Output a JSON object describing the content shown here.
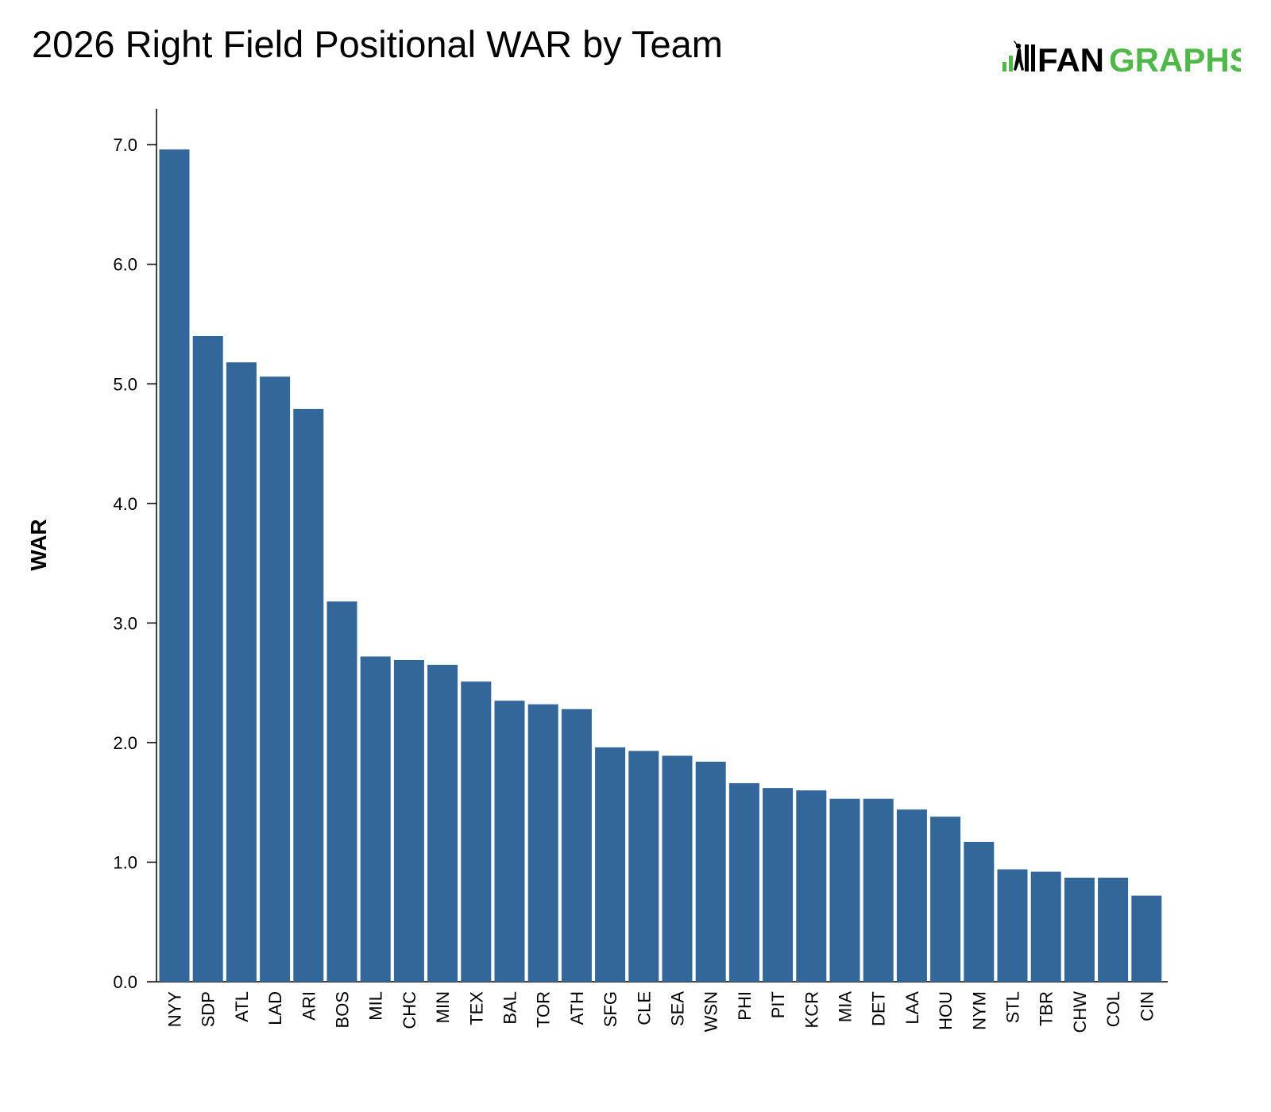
{
  "title": "2026 Right Field Positional WAR by Team",
  "logo": {
    "text_dark": "FAN",
    "text_green": "GRAPHS",
    "icon": "batter-bars-icon",
    "color_dark": "#000000",
    "color_green": "#4fb848"
  },
  "chart_data": {
    "type": "bar",
    "title": "2026 Right Field Positional WAR by Team",
    "xlabel": "",
    "ylabel": "WAR",
    "ylim": [
      0,
      7.3
    ],
    "yticks": [
      "0.0",
      "1.0",
      "2.0",
      "3.0",
      "4.0",
      "5.0",
      "6.0",
      "7.0"
    ],
    "bar_color": "#336699",
    "grid": false,
    "legend": "none",
    "categories": [
      "NYY",
      "SDP",
      "ATL",
      "LAD",
      "ARI",
      "BOS",
      "MIL",
      "CHC",
      "MIN",
      "TEX",
      "BAL",
      "TOR",
      "ATH",
      "SFG",
      "CLE",
      "SEA",
      "WSN",
      "PHI",
      "PIT",
      "KCR",
      "MIA",
      "DET",
      "LAA",
      "HOU",
      "NYM",
      "STL",
      "TBR",
      "CHW",
      "COL",
      "CIN"
    ],
    "values": [
      6.96,
      5.4,
      5.18,
      5.06,
      4.79,
      3.18,
      2.72,
      2.69,
      2.65,
      2.51,
      2.35,
      2.32,
      2.28,
      1.96,
      1.93,
      1.89,
      1.84,
      1.66,
      1.62,
      1.6,
      1.53,
      1.53,
      1.44,
      1.38,
      1.17,
      0.94,
      0.92,
      0.87,
      0.87,
      0.72
    ]
  }
}
